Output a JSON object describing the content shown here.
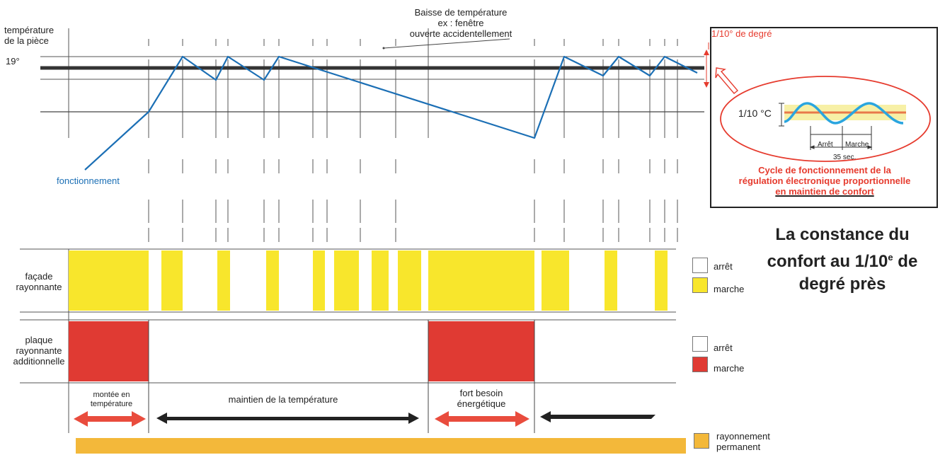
{
  "colors": {
    "temperature_line": "#1b6fb5",
    "setpoint_line": "#333333",
    "marche_yellow": "#f8e62c",
    "marche_red": "#e03a33",
    "arrow_red": "#e94c3d",
    "arrow_black": "#222222",
    "permanent_orange": "#f3b83a",
    "inset_band": "#f7f0a6",
    "inset_wave": "#2aa5df"
  },
  "top": {
    "y_axis_label_line1": "température",
    "y_axis_label_line2": "de la pièce",
    "setpoint_label": "19°",
    "annotation_line1": "Baisse de température",
    "annotation_line2": "ex : fenêtre",
    "annotation_line3": "ouverte accidentellement",
    "precision_label": "1/10° de degré",
    "curve_label": "fonctionnement"
  },
  "inset": {
    "amplitude_label": "1/10 °C",
    "off_label": "Arrêt",
    "on_label": "Marche",
    "period_label": "35 sec.",
    "title_line1": "Cycle de fonctionnement de la",
    "title_line2": "régulation électronique proportionnelle",
    "title_line3": "en maintien de confort"
  },
  "headline": {
    "line1": "La constance du",
    "line2": "confort au 1/10",
    "line2_sup": "e",
    "line2_end": " de",
    "line3": "degré près"
  },
  "rows": {
    "facade_line1": "façade",
    "facade_line2": "rayonnante",
    "plaque_line1": "plaque",
    "plaque_line2": "rayonnante",
    "plaque_line3": "additionnelle"
  },
  "legend": {
    "facade_off": "arrêt",
    "facade_on": "marche",
    "plaque_off": "arrêt",
    "plaque_on": "marche",
    "permanent_line1": "rayonnement",
    "permanent_line2": "permanent"
  },
  "phases": {
    "phase1_line1": "montée en",
    "phase1_line2": "température",
    "phase2": "maintien de la température",
    "phase3_line1": "fort besoin",
    "phase3_line2": "énergétique"
  }
}
